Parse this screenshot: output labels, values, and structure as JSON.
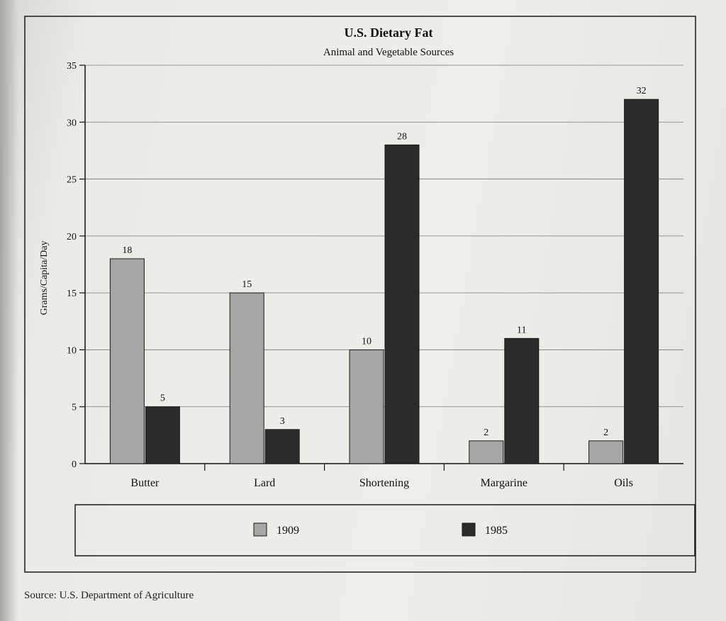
{
  "chart_data": {
    "type": "bar",
    "title": "U.S. Dietary Fat",
    "subtitle": "Animal and Vegetable Sources",
    "ylabel": "Grams/Capita/Day",
    "xlabel": "",
    "ylim": [
      0,
      35
    ],
    "yticks": [
      0,
      5,
      10,
      15,
      20,
      25,
      30,
      35
    ],
    "grid": true,
    "legend_position": "bottom",
    "categories": [
      "Butter",
      "Lard",
      "Shortening",
      "Margarine",
      "Oils"
    ],
    "series": [
      {
        "name": "1909",
        "values": [
          18,
          15,
          10,
          2,
          2
        ],
        "color": "#a6a6a6"
      },
      {
        "name": "1985",
        "values": [
          5,
          3,
          28,
          11,
          32
        ],
        "color": "#2b2b2b"
      }
    ]
  },
  "source": "Source: U.S. Department of Agriculture"
}
